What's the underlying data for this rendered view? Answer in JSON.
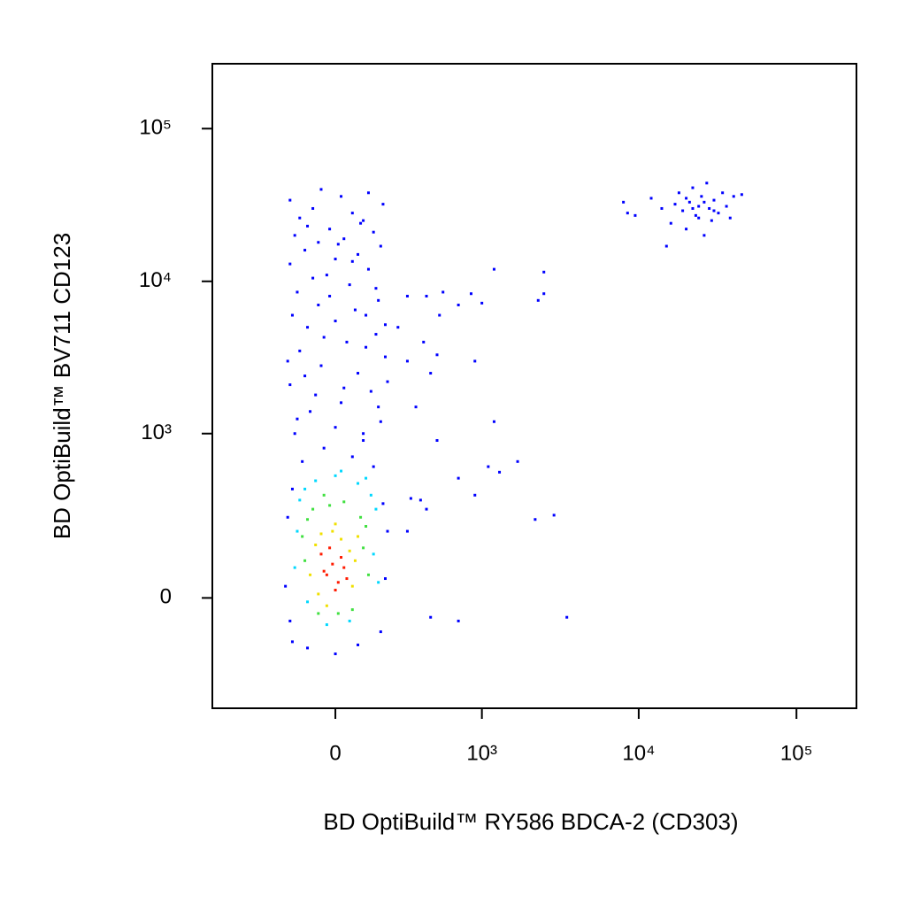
{
  "chart_data": {
    "type": "scatter",
    "x_label": "BD OptiBuild™ RY586 BDCA-2 (CD303)",
    "y_label": "BD OptiBuild™ BV711 CD123",
    "xscale": "biexponential",
    "yscale": "biexponential",
    "xlim": [
      -700,
      240000
    ],
    "ylim": [
      -430,
      266000
    ],
    "xticks": [
      0,
      {
        "value": 1000,
        "label": "10³"
      },
      {
        "value": 10000,
        "label": "10⁴"
      },
      {
        "value": 100000,
        "label": "10⁵"
      }
    ],
    "yticks": [
      0,
      {
        "value": 1000,
        "label": "10³"
      },
      {
        "value": 10000,
        "label": "10⁴"
      },
      {
        "value": 100000,
        "label": "10⁵"
      }
    ],
    "series": [
      {
        "color": "#0000ff",
        "x": [
          -160,
          -100,
          0,
          80,
          170,
          190,
          -190,
          -170,
          200,
          -180,
          180,
          -160,
          140,
          -120,
          60,
          -40,
          100,
          -150,
          170,
          -90,
          20,
          130,
          -170,
          80,
          -50,
          190,
          -130,
          40,
          150,
          -100,
          0,
          110,
          -180,
          200,
          -60,
          160,
          -140,
          50,
          -30,
          120,
          -170,
          0,
          80,
          -110,
          170,
          -60,
          30,
          -150,
          140,
          -20,
          90,
          -130,
          60,
          -80,
          180,
          -170,
          20,
          120,
          -50,
          100,
          -100,
          10,
          60,
          -80,
          150,
          -20,
          70,
          -160,
          190,
          -40,
          110,
          -110,
          30,
          160,
          -140,
          0,
          100,
          -70,
          300,
          450,
          700,
          3500,
          2200,
          2900,
          380,
          320,
          420,
          700,
          900,
          1100,
          1300,
          1700,
          500,
          1200,
          350,
          450,
          900,
          500,
          300,
          400,
          520,
          700,
          1000,
          420,
          550,
          300,
          250,
          850,
          2300,
          2500,
          2500,
          1200,
          8000,
          8500,
          9500,
          12000,
          14000,
          15000,
          16000,
          18000,
          19000,
          20000,
          21000,
          22000,
          23000,
          24000,
          25000,
          26000,
          27000,
          28000,
          29000,
          30000,
          32000,
          34000,
          36000,
          38000,
          40000,
          45000,
          22000,
          26000,
          30000,
          20000,
          24000,
          17000
        ],
        "values": [
          -120,
          -140,
          -160,
          -130,
          -90,
          50,
          30,
          -60,
          200,
          260,
          330,
          420,
          600,
          650,
          700,
          800,
          900,
          1000,
          1200,
          1400,
          1600,
          1900,
          2100,
          2500,
          2800,
          3200,
          3500,
          4000,
          4500,
          5000,
          5500,
          6000,
          3000,
          2200,
          7000,
          7500,
          8500,
          9500,
          11000,
          12000,
          13000,
          14000,
          15000,
          16000,
          17000,
          18000,
          19000,
          20000,
          21000,
          22000,
          24000,
          26000,
          28000,
          30000,
          32000,
          34000,
          36000,
          38000,
          40000,
          25000,
          23000,
          17500,
          13500,
          10500,
          9000,
          8000,
          6500,
          6000,
          5200,
          4300,
          3700,
          2400,
          2000,
          1500,
          1250,
          1100,
          1000,
          1800,
          200,
          -50,
          -60,
          -50,
          250,
          270,
          350,
          360,
          300,
          500,
          380,
          600,
          550,
          650,
          900,
          1200,
          1500,
          2500,
          3000,
          3300,
          3000,
          4000,
          6000,
          7000,
          7200,
          8000,
          8500,
          8000,
          5000,
          8300,
          7500,
          8300,
          11500,
          12000,
          33000,
          28000,
          27000,
          35000,
          30000,
          17000,
          24000,
          38000,
          29000,
          22000,
          33000,
          41000,
          27000,
          31000,
          36000,
          20000,
          44000,
          30000,
          25000,
          34000,
          28000,
          38000,
          31000,
          26000,
          36000,
          37000,
          30000,
          33000,
          29000,
          35000,
          26000,
          32000
        ]
      },
      {
        "color": "#00d8ff",
        "x": [
          -140,
          140,
          -130,
          150,
          -110,
          130,
          -70,
          80,
          0,
          -30,
          50,
          -150,
          160,
          20,
          -100,
          110
        ],
        "values": [
          200,
          120,
          350,
          300,
          420,
          380,
          480,
          460,
          520,
          -70,
          -60,
          80,
          40,
          560,
          -10,
          500
        ]
      },
      {
        "color": "#40e040",
        "x": [
          -110,
          100,
          -100,
          120,
          -80,
          90,
          -20,
          30,
          -120,
          60,
          10,
          -60,
          110,
          -40
        ],
        "values": [
          100,
          140,
          250,
          60,
          300,
          260,
          320,
          340,
          180,
          -30,
          -40,
          -40,
          220,
          380
        ]
      },
      {
        "color": "#f0e000",
        "x": [
          -70,
          60,
          -60,
          80,
          -10,
          20,
          -90,
          50,
          0,
          -30,
          70,
          -50
        ],
        "values": [
          150,
          30,
          10,
          180,
          200,
          170,
          60,
          130,
          230,
          -20,
          100,
          190
        ]
      },
      {
        "color": "#ff1a00",
        "x": [
          -30,
          -10,
          10,
          -50,
          30,
          0,
          -20,
          20,
          -40,
          40
        ],
        "values": [
          60,
          90,
          40,
          120,
          80,
          20,
          140,
          110,
          70,
          50
        ]
      }
    ]
  }
}
